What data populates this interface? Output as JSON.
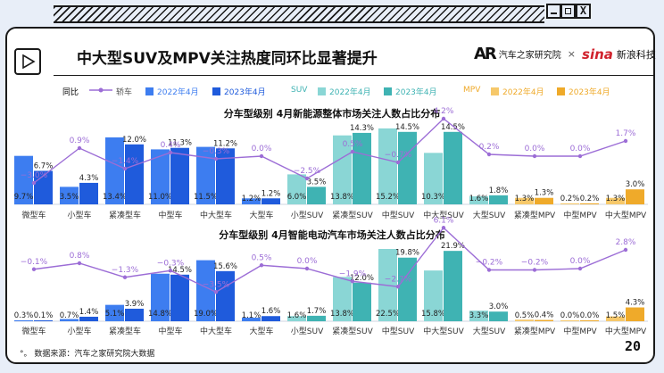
{
  "header": {
    "title": "中大型SUV及MPV关注热度同环比显著提升",
    "logo_autohome": "汽车之家研究院",
    "logo_autohome_mark": "AR",
    "logo_sep": "×",
    "logo_sina_mark": "sina",
    "logo_sina": "新浪科技",
    "close_glyph": "X"
  },
  "legend": {
    "huanbi": "同比",
    "car": "轿车",
    "suv": "SUV",
    "mpv": "MPV",
    "y2022": "2022年4月",
    "y2023": "2023年4月"
  },
  "colors": {
    "car_2022": "#3d7df0",
    "car_2023": "#1f5bdc",
    "suv_2022": "#8ad6d5",
    "suv_2023": "#3fb3b3",
    "mpv_2022": "#f6c86a",
    "mpv_2023": "#efaa2a",
    "line": "#9c6dd6"
  },
  "chart_data": [
    {
      "type": "bar",
      "title": "分车型级别 4月新能源整体市场关注人数占比分布",
      "categories": [
        "微型车",
        "小型车",
        "紧凑型车",
        "中型车",
        "中大型车",
        "大型车",
        "小型SUV",
        "紧凑型SUV",
        "中型SUV",
        "中大型SUV",
        "大型SUV",
        "紧凑型MPV",
        "中型MPV",
        "中大型MPV"
      ],
      "series": [
        {
          "name": "2022年4月",
          "values": [
            9.7,
            3.5,
            13.4,
            11.0,
            11.5,
            1.2,
            6.0,
            13.8,
            15.2,
            10.3,
            1.6,
            1.3,
            0.2,
            1.3
          ]
        },
        {
          "name": "2023年4月",
          "values": [
            6.7,
            4.3,
            12.0,
            11.3,
            11.2,
            1.2,
            3.5,
            14.3,
            14.5,
            14.5,
            1.8,
            1.3,
            0.2,
            3.0
          ]
        }
      ],
      "line": {
        "name": "同比",
        "values": [
          -3.0,
          0.9,
          -1.4,
          0.4,
          -0.3,
          0.0,
          -2.5,
          0.5,
          -0.7,
          4.2,
          0.2,
          0.0,
          0.0,
          1.7
        ]
      },
      "unit": "%"
    },
    {
      "type": "bar",
      "title": "分车型级别 4月智能电动汽车市场关注人数占比分布",
      "categories": [
        "微型车",
        "小型车",
        "紧凑型车",
        "中型车",
        "中大型车",
        "大型车",
        "小型SUV",
        "紧凑型SUV",
        "中型SUV",
        "中大型SUV",
        "大型SUV",
        "紧凑型MPV",
        "中型MPV",
        "中大型MPV"
      ],
      "series": [
        {
          "name": "2022年4月",
          "values": [
            0.3,
            0.7,
            5.1,
            14.8,
            19.0,
            1.1,
            1.6,
            13.8,
            22.5,
            15.8,
            3.3,
            0.5,
            0.0,
            1.5
          ]
        },
        {
          "name": "2023年4月",
          "values": [
            0.1,
            1.4,
            3.9,
            14.5,
            15.6,
            1.6,
            1.7,
            12.0,
            19.8,
            21.9,
            3.0,
            0.4,
            0.0,
            4.3
          ]
        }
      ],
      "line": {
        "name": "同比",
        "values": [
          -0.1,
          0.8,
          -1.3,
          -0.3,
          -3.5,
          0.5,
          0.0,
          -1.9,
          -2.7,
          6.1,
          -0.2,
          -0.2,
          0.0,
          2.8
        ]
      },
      "unit": "%"
    }
  ],
  "footer": {
    "note_mark": "°。",
    "source": "数据来源：汽车之家研究院大数据",
    "page": "20"
  }
}
